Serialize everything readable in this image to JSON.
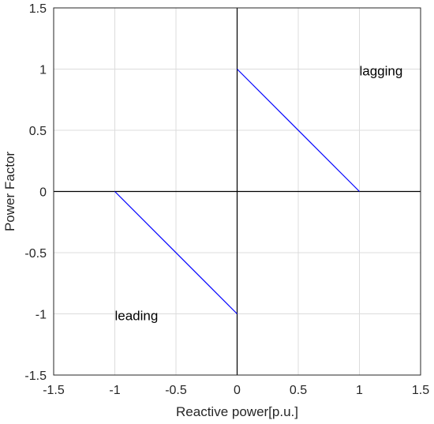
{
  "chart_data": {
    "type": "line",
    "title": "",
    "xlabel": "Reactive power[p.u.]",
    "ylabel": "Power Factor",
    "xlim": [
      -1.5,
      1.5
    ],
    "ylim": [
      -1.5,
      1.5
    ],
    "xticks": [
      -1.5,
      -1,
      -0.5,
      0,
      0.5,
      1,
      1.5
    ],
    "yticks": [
      -1.5,
      -1,
      -0.5,
      0,
      0.5,
      1,
      1.5
    ],
    "xtick_labels": [
      "-1.5",
      "-1",
      "-0.5",
      "0",
      "0.5",
      "1",
      "1.5"
    ],
    "ytick_labels": [
      "-1.5",
      "-1",
      "-0.5",
      "0",
      "0.5",
      "1",
      "1.5"
    ],
    "grid": true,
    "series": [
      {
        "x": [
          0,
          1
        ],
        "y": [
          1,
          0
        ],
        "color": "#0000ff"
      },
      {
        "x": [
          -1,
          0
        ],
        "y": [
          0,
          -1
        ],
        "color": "#0000ff"
      }
    ],
    "annotations": [
      {
        "text": "lagging",
        "x": 1.0,
        "y": 1.0
      },
      {
        "text": "leading",
        "x": -1.0,
        "y": -1.0
      }
    ]
  }
}
